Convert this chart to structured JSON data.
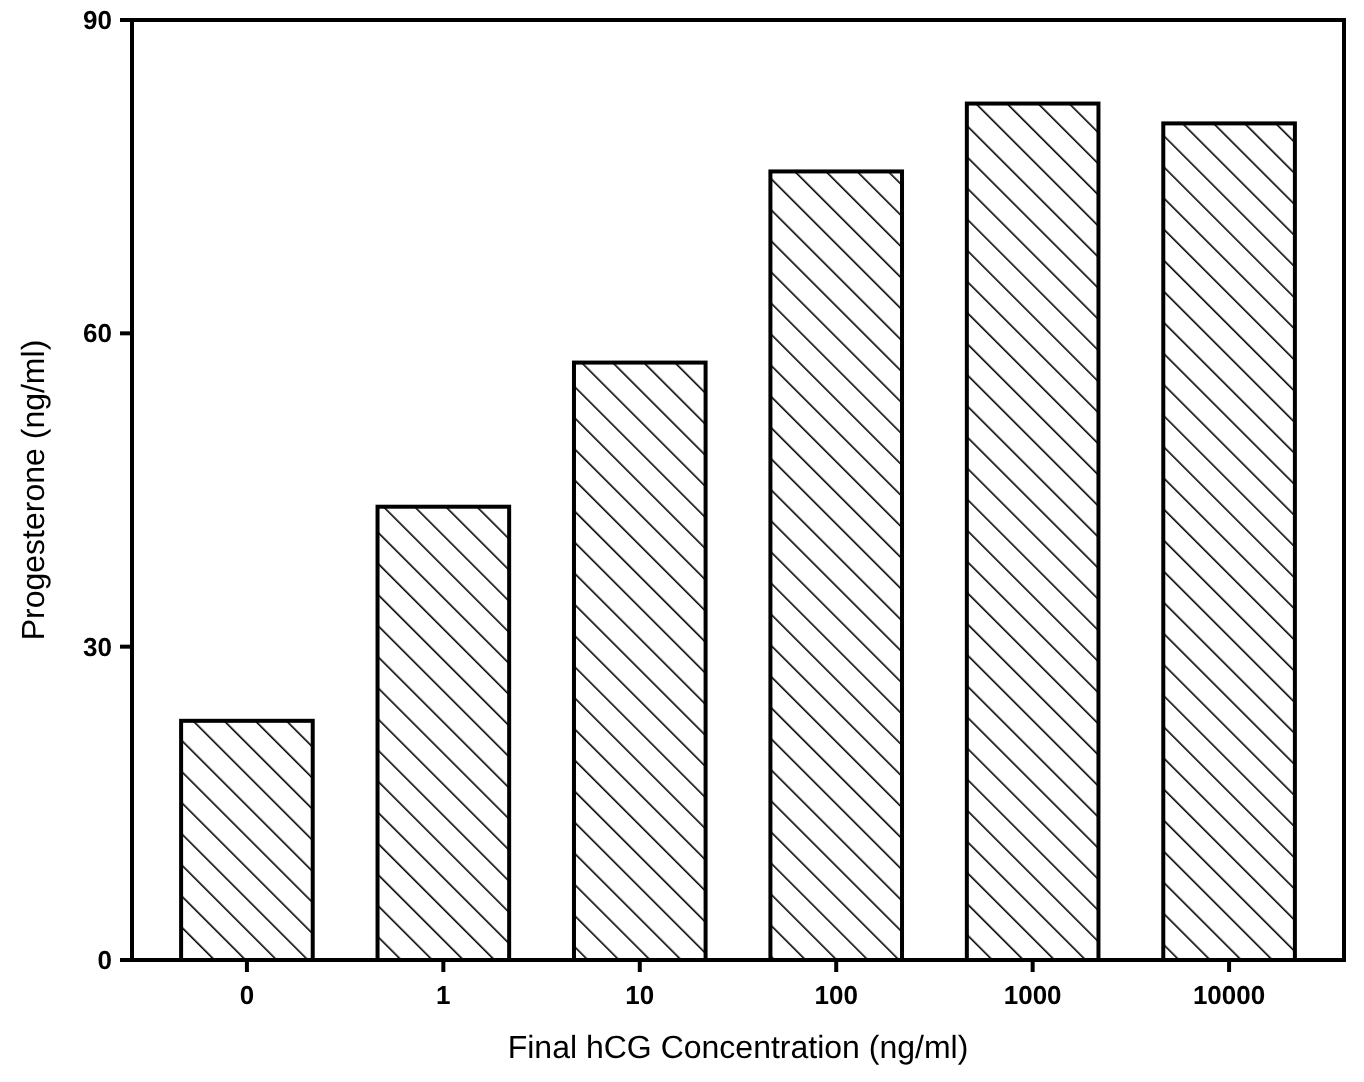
{
  "chart_data": {
    "type": "bar",
    "xlabel": "Final hCG Concentration (ng/ml)",
    "ylabel": "Progesterone (ng/ml)",
    "categories": [
      "0",
      "1",
      "10",
      "100",
      "1000",
      "10000"
    ],
    "values": [
      22.9,
      43.4,
      57.2,
      75.5,
      82.0,
      80.1
    ],
    "color": "#000000",
    "ylim": [
      0,
      90
    ],
    "yticks": [
      0,
      30,
      60,
      90
    ],
    "grid": false
  }
}
